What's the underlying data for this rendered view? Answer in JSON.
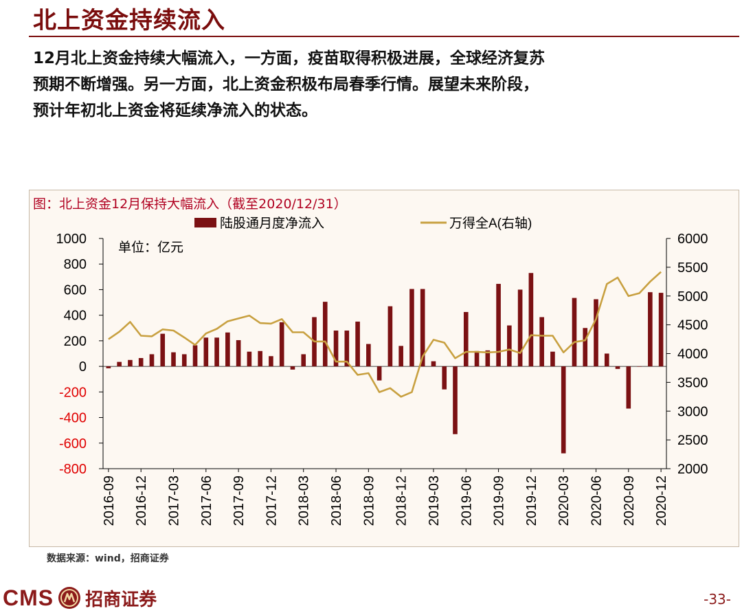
{
  "slide": {
    "title": "北上资金持续流入",
    "summary_lines": [
      "12月北上资金持续大幅流入，一方面，疫苗取得积极进展，全球经济复苏",
      "预期不断增强。另一方面，北上资金积极布局春季行情。展望未来阶段，",
      "预计年初北上资金将延续净流入的状态。"
    ],
    "source": "数据来源：wind，招商证券",
    "page_number": "-33-",
    "footer_brand_latin": "CMS",
    "footer_brand_cn": "招商证券"
  },
  "chart_data": {
    "type": "bar+line",
    "caption": "图：北上资金12月保持大幅流入（截至2020/12/31）",
    "unit_note": "单位：亿元",
    "legend": {
      "bar": "陆股通月度净流入",
      "line": "万得全A(右轴)"
    },
    "colors": {
      "bar": "#7b1113",
      "line": "#c8a040",
      "negative_tick": "#e00000",
      "caption": "#b00020"
    },
    "y_left": {
      "min": -800,
      "max": 1000,
      "ticks": [
        1000,
        800,
        600,
        400,
        200,
        0,
        -200,
        -400,
        -600,
        -800
      ]
    },
    "y_right": {
      "min": 2000,
      "max": 6000,
      "ticks": [
        6000,
        5500,
        5000,
        4500,
        4000,
        3500,
        3000,
        2500,
        2000
      ]
    },
    "x_tick_labels": [
      "2016-09",
      "2016-12",
      "2017-03",
      "2017-06",
      "2017-09",
      "2017-12",
      "2018-03",
      "2018-06",
      "2018-09",
      "2018-12",
      "2019-03",
      "2019-06",
      "2019-09",
      "2019-12",
      "2020-03",
      "2020-06",
      "2020-09",
      "2020-12"
    ],
    "months": [
      "2016-09",
      "2016-10",
      "2016-11",
      "2016-12",
      "2017-01",
      "2017-02",
      "2017-03",
      "2017-04",
      "2017-05",
      "2017-06",
      "2017-07",
      "2017-08",
      "2017-09",
      "2017-10",
      "2017-11",
      "2017-12",
      "2018-01",
      "2018-02",
      "2018-03",
      "2018-04",
      "2018-05",
      "2018-06",
      "2018-07",
      "2018-08",
      "2018-09",
      "2018-10",
      "2018-11",
      "2018-12",
      "2019-01",
      "2019-02",
      "2019-03",
      "2019-04",
      "2019-05",
      "2019-06",
      "2019-07",
      "2019-08",
      "2019-09",
      "2019-10",
      "2019-11",
      "2019-12",
      "2020-01",
      "2020-02",
      "2020-03",
      "2020-04",
      "2020-05",
      "2020-06",
      "2020-07",
      "2020-08",
      "2020-09",
      "2020-10",
      "2020-11",
      "2020-12"
    ],
    "net_inflow": [
      -15,
      35,
      50,
      65,
      95,
      255,
      110,
      95,
      165,
      225,
      225,
      265,
      205,
      115,
      120,
      80,
      345,
      -25,
      95,
      385,
      505,
      280,
      280,
      350,
      175,
      -110,
      470,
      160,
      605,
      605,
      40,
      -180,
      -530,
      425,
      120,
      125,
      645,
      320,
      600,
      730,
      385,
      115,
      -680,
      535,
      300,
      525,
      100,
      -20,
      -330,
      0,
      580,
      575
    ],
    "wind_all_a": [
      4250,
      4380,
      4550,
      4310,
      4300,
      4420,
      4400,
      4280,
      4150,
      4350,
      4430,
      4560,
      4610,
      4660,
      4530,
      4520,
      4600,
      4370,
      4370,
      4210,
      4210,
      3860,
      3860,
      3630,
      3660,
      3330,
      3400,
      3250,
      3330,
      3950,
      4240,
      4190,
      3920,
      4030,
      4030,
      4020,
      4030,
      4070,
      4010,
      4320,
      4310,
      4310,
      4020,
      4200,
      4230,
      4600,
      5210,
      5320,
      5000,
      5050,
      5250,
      5420
    ]
  }
}
